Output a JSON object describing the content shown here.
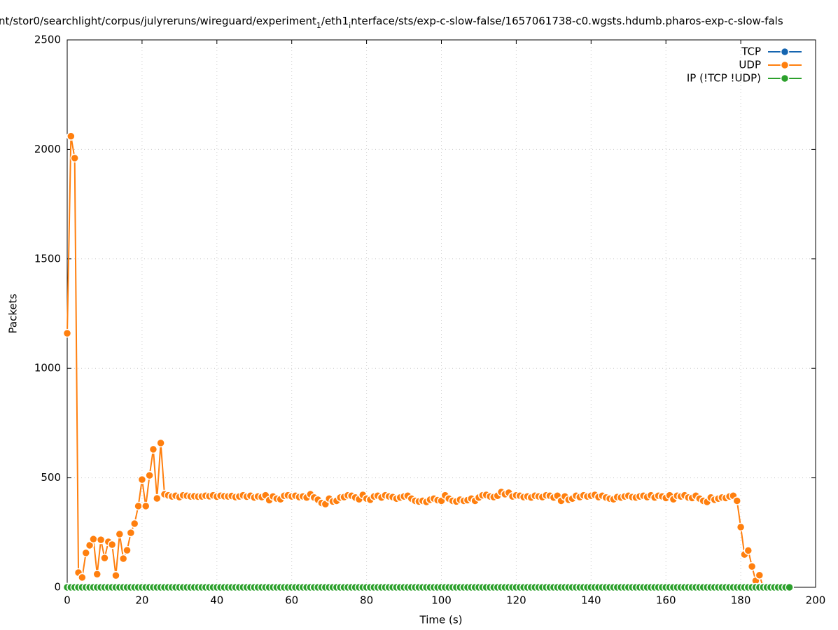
{
  "chart_data": {
    "type": "line",
    "title": [
      "nt/stor0/searchlight/corpus/julyreruns/wireguard/experiment",
      "1",
      "/eth1",
      "i",
      "nterface/sts/exp-c-slow-false/1657061738-c0.wgsts.hdumb.pharos-exp-c-slow-fals"
    ],
    "xlabel": "Time (s)",
    "ylabel": "Packets",
    "xlim": [
      0,
      200
    ],
    "xticks": [
      0,
      20,
      40,
      60,
      80,
      100,
      120,
      140,
      160,
      180,
      200
    ],
    "ylim": [
      0,
      2500
    ],
    "yticks": [
      0,
      500,
      1000,
      1500,
      2000,
      2500
    ],
    "grid": true,
    "legend": "top-right",
    "x": [
      0,
      1,
      2,
      3,
      4,
      5,
      6,
      7,
      8,
      9,
      10,
      11,
      12,
      13,
      14,
      15,
      16,
      17,
      18,
      19,
      20,
      21,
      22,
      23,
      24,
      25,
      26,
      27,
      28,
      29,
      30,
      31,
      32,
      33,
      34,
      35,
      36,
      37,
      38,
      39,
      40,
      41,
      42,
      43,
      44,
      45,
      46,
      47,
      48,
      49,
      50,
      51,
      52,
      53,
      54,
      55,
      56,
      57,
      58,
      59,
      60,
      61,
      62,
      63,
      64,
      65,
      66,
      67,
      68,
      69,
      70,
      71,
      72,
      73,
      74,
      75,
      76,
      77,
      78,
      79,
      80,
      81,
      82,
      83,
      84,
      85,
      86,
      87,
      88,
      89,
      90,
      91,
      92,
      93,
      94,
      95,
      96,
      97,
      98,
      99,
      100,
      101,
      102,
      103,
      104,
      105,
      106,
      107,
      108,
      109,
      110,
      111,
      112,
      113,
      114,
      115,
      116,
      117,
      118,
      119,
      120,
      121,
      122,
      123,
      124,
      125,
      126,
      127,
      128,
      129,
      130,
      131,
      132,
      133,
      134,
      135,
      136,
      137,
      138,
      139,
      140,
      141,
      142,
      143,
      144,
      145,
      146,
      147,
      148,
      149,
      150,
      151,
      152,
      153,
      154,
      155,
      156,
      157,
      158,
      159,
      160,
      161,
      162,
      163,
      164,
      165,
      166,
      167,
      168,
      169,
      170,
      171,
      172,
      173,
      174,
      175,
      176,
      177,
      178,
      179,
      180,
      181,
      182,
      183,
      184,
      185,
      186,
      187,
      188,
      189,
      190,
      191,
      192,
      193
    ],
    "series": [
      {
        "name": "TCP",
        "color": "#1565b0",
        "values": [
          0,
          0,
          0,
          0,
          0,
          0,
          0,
          0,
          0,
          0,
          0,
          0,
          0,
          0,
          0,
          0,
          0,
          0,
          0,
          0,
          0,
          0,
          0,
          0,
          0,
          0,
          0,
          0,
          0,
          0,
          0,
          0,
          0,
          0,
          0,
          0,
          0,
          0,
          0,
          0,
          0,
          0,
          0,
          0,
          0,
          0,
          0,
          0,
          0,
          0,
          0,
          0,
          0,
          0,
          0,
          0,
          0,
          0,
          0,
          0,
          0,
          0,
          0,
          0,
          0,
          0,
          0,
          0,
          0,
          0,
          0,
          0,
          0,
          0,
          0,
          0,
          0,
          0,
          0,
          0,
          0,
          0,
          0,
          0,
          0,
          0,
          0,
          0,
          0,
          0,
          0,
          0,
          0,
          0,
          0,
          0,
          0,
          0,
          0,
          0,
          0,
          0,
          0,
          0,
          0,
          0,
          0,
          0,
          0,
          0,
          0,
          0,
          0,
          0,
          0,
          0,
          0,
          0,
          0,
          0,
          0,
          0,
          0,
          0,
          0,
          0,
          0,
          0,
          0,
          0,
          0,
          0,
          0,
          0,
          0,
          0,
          0,
          0,
          0,
          0,
          0,
          0,
          0,
          0,
          0,
          0,
          0,
          0,
          0,
          0,
          0,
          0,
          0,
          0,
          0,
          0,
          0,
          0,
          0,
          0,
          0,
          0,
          0,
          0,
          0,
          0,
          0,
          0,
          0,
          0,
          0,
          0,
          0,
          0,
          0,
          0,
          0,
          0,
          0,
          0,
          0,
          0,
          0,
          0,
          0,
          0,
          0,
          0,
          0,
          0,
          0,
          0,
          0,
          0
        ]
      },
      {
        "name": "UDP",
        "color": "#ff7f0e",
        "values": [
          1160,
          2060,
          1960,
          67,
          45,
          157,
          192,
          220,
          60,
          217,
          134,
          208,
          195,
          54,
          243,
          131,
          169,
          249,
          291,
          371,
          492,
          371,
          511,
          630,
          406,
          659,
          425,
          420,
          415,
          418,
          412,
          420,
          418,
          415,
          416,
          414,
          415,
          418,
          416,
          420,
          414,
          418,
          416,
          415,
          417,
          412,
          415,
          420,
          414,
          418,
          410,
          415,
          412,
          420,
          398,
          415,
          405,
          402,
          418,
          420,
          415,
          418,
          412,
          415,
          410,
          425,
          410,
          400,
          385,
          380,
          405,
          392,
          395,
          410,
          412,
          420,
          418,
          410,
          402,
          422,
          405,
          400,
          415,
          418,
          410,
          420,
          415,
          412,
          405,
          410,
          415,
          418,
          405,
          395,
          392,
          395,
          390,
          400,
          405,
          398,
          395,
          420,
          405,
          395,
          392,
          400,
          395,
          398,
          405,
          395,
          410,
          420,
          422,
          415,
          412,
          418,
          435,
          425,
          432,
          415,
          420,
          418,
          412,
          415,
          410,
          418,
          415,
          412,
          420,
          418,
          410,
          418,
          395,
          415,
          400,
          405,
          418,
          412,
          420,
          415,
          418,
          422,
          412,
          418,
          410,
          405,
          402,
          412,
          410,
          415,
          418,
          412,
          410,
          415,
          418,
          412,
          420,
          410,
          418,
          415,
          408,
          420,
          402,
          418,
          415,
          420,
          410,
          408,
          418,
          405,
          395,
          390,
          410,
          400,
          405,
          410,
          408,
          415,
          418,
          395,
          275,
          150,
          168,
          95,
          30,
          55,
          0,
          0,
          0,
          0,
          0,
          0,
          0,
          0
        ]
      },
      {
        "name": "IP (!TCP  !UDP)",
        "color": "#2ca02c",
        "values": [
          0,
          0,
          0,
          0,
          0,
          0,
          0,
          0,
          0,
          0,
          0,
          0,
          0,
          0,
          0,
          0,
          0,
          0,
          0,
          0,
          0,
          0,
          0,
          0,
          0,
          0,
          0,
          0,
          0,
          0,
          0,
          0,
          0,
          0,
          0,
          0,
          0,
          0,
          0,
          0,
          0,
          0,
          0,
          0,
          0,
          0,
          0,
          0,
          0,
          0,
          0,
          0,
          0,
          0,
          0,
          0,
          0,
          0,
          0,
          0,
          0,
          0,
          0,
          0,
          0,
          0,
          0,
          0,
          0,
          0,
          0,
          0,
          0,
          0,
          0,
          0,
          0,
          0,
          0,
          0,
          0,
          0,
          0,
          0,
          0,
          0,
          0,
          0,
          0,
          0,
          0,
          0,
          0,
          0,
          0,
          0,
          0,
          0,
          0,
          0,
          0,
          0,
          0,
          0,
          0,
          0,
          0,
          0,
          0,
          0,
          0,
          0,
          0,
          0,
          0,
          0,
          0,
          0,
          0,
          0,
          0,
          0,
          0,
          0,
          0,
          0,
          0,
          0,
          0,
          0,
          0,
          0,
          0,
          0,
          0,
          0,
          0,
          0,
          0,
          0,
          0,
          0,
          0,
          0,
          0,
          0,
          0,
          0,
          0,
          0,
          0,
          0,
          0,
          0,
          0,
          0,
          0,
          0,
          0,
          0,
          0,
          0,
          0,
          0,
          0,
          0,
          0,
          0,
          0,
          0,
          0,
          0,
          0,
          0,
          0,
          0,
          0,
          0,
          0,
          0,
          0,
          0,
          0,
          0,
          0,
          0,
          0,
          0,
          0,
          0,
          0,
          0,
          0,
          0
        ]
      }
    ]
  }
}
